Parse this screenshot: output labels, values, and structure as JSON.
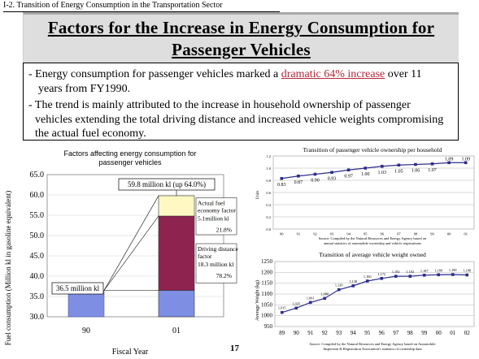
{
  "section_label": "I-2. Transition of Energy Consumption in the Transportation Sector",
  "title": {
    "line1": "Factors for the Increase in Energy Consumption for",
    "line2": "Passenger Vehicles"
  },
  "summary": {
    "b1_pre": "- Energy consumption for passenger vehicles marked a ",
    "b1_highlight": "dramatic 64% increase",
    "b1_post": " over 11",
    "b1_line2": "years from FY1990.",
    "b2_line1": "- The trend is mainly attributed to the increase in household ownership of passenger",
    "b2_line2": "vehicles extending the total driving distance and increased vehicle weights compromising",
    "b2_line3": "the actual fuel economy."
  },
  "page_number": "17",
  "colors": {
    "highlight": "#b2283b",
    "base_bar": "#7e8fe3",
    "driving": "#8e2350",
    "fuel": "#fff8c2",
    "line": "#2d2d8c"
  },
  "chart_data": [
    {
      "type": "bar",
      "title": "Factors affecting energy consumption for passenger vehicles",
      "ylabel": "Fuel consumption (Million kl in gasoline equivalent)",
      "xlabel": "Fiscal Year",
      "ylim": [
        30,
        65
      ],
      "yticks": [
        "30.0",
        "35.0",
        "40.0",
        "45.0",
        "50.0",
        "55.0",
        "60.0",
        "65.0"
      ],
      "categories": [
        "90",
        "01"
      ],
      "base_value": 36.5,
      "stack_01": [
        {
          "name": "base",
          "from": 30,
          "to": 36.5
        },
        {
          "name": "Driving distance factor",
          "from": 36.5,
          "to": 54.8
        },
        {
          "name": "Actual fuel economy factor",
          "from": 54.8,
          "to": 59.8
        }
      ],
      "annotations": {
        "total": "59.8 million kl (up 64.0%)",
        "base": "36.5 million kl",
        "fuel_label": "Actual fuel economy factor",
        "fuel_value": "5.1million kl",
        "fuel_pct": "21.8%",
        "driving_label": "Driving distance factor",
        "driving_value": "18.3 million kl",
        "driving_pct": "78.2%"
      }
    },
    {
      "type": "line",
      "title": "Transition of passenger vehicle ownership per household",
      "ylabel": "Units",
      "x": [
        "90",
        "91",
        "92",
        "93",
        "94",
        "95",
        "96",
        "97",
        "98",
        "99",
        "00",
        "01"
      ],
      "values": [
        0.83,
        0.87,
        0.9,
        0.93,
        0.97,
        1.0,
        1.03,
        1.05,
        1.06,
        1.07,
        1.09,
        1.09
      ],
      "labels": [
        "0.83",
        "0.87",
        "0.90",
        "0.93",
        "0.97",
        "1.00",
        "1.03",
        "1.05",
        "1.06",
        "1.07",
        "1.09",
        "1.09"
      ],
      "ylim": [
        0,
        1.2
      ],
      "yticks": [
        "0.0",
        "0.2",
        "0.4",
        "0.6",
        "0.8",
        "1.0",
        "1.2"
      ],
      "source": "Source: Compiled by the Natural Resources and Energy Agency based on annual statistics of automobile ownership and vehicle registrations"
    },
    {
      "type": "line",
      "title": "Transition of average vehicle weight owned",
      "ylabel": "Average Weight (kg)",
      "x": [
        "89",
        "90",
        "91",
        "92",
        "93",
        "94",
        "95",
        "96",
        "97",
        "98",
        "99",
        "00",
        "01",
        "02"
      ],
      "values": [
        1015,
        1035,
        1061,
        1080,
        1120,
        1138,
        1160,
        1172,
        1182,
        1182,
        1187,
        1189,
        1190,
        1188
      ],
      "labels": [
        "1,015",
        "1,035",
        "1,061",
        "1,080",
        "1,120",
        "1,138",
        "1,160",
        "1,172",
        "1,182",
        "1,182",
        "1,187",
        "1,189",
        "1,190",
        "1,188"
      ],
      "ylim": [
        950,
        1250
      ],
      "yticks": [
        "950",
        "1000",
        "1050",
        "1100",
        "1150",
        "1200",
        "1250"
      ],
      "source": "Source: Compiled by the Natural Resources and Energy Agency based on Automobile Inspection & Registration Association's statistics of ownership data"
    }
  ]
}
